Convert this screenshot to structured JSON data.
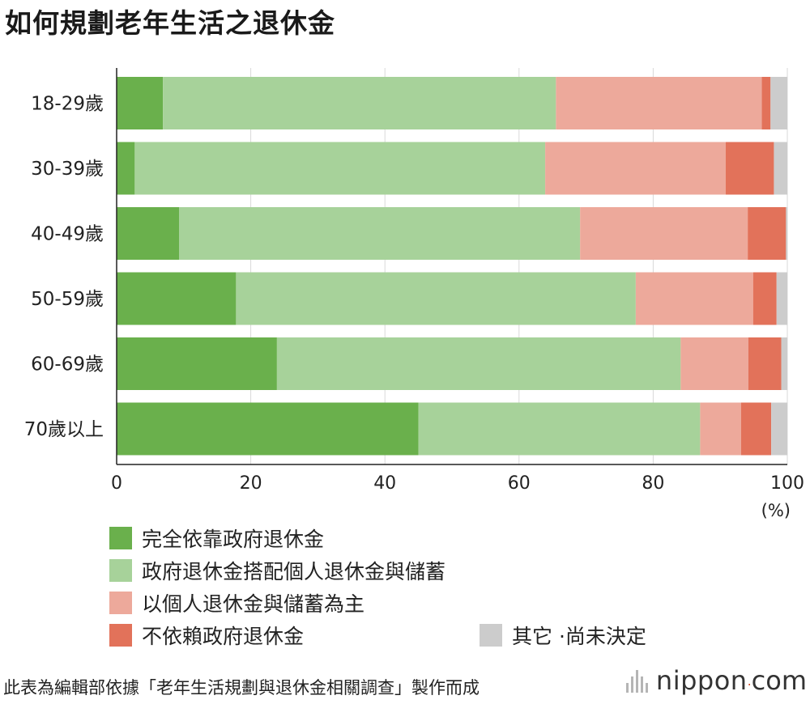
{
  "title": "如何規劃老年生活之退休金",
  "chart_data": {
    "type": "bar",
    "orientation": "horizontal",
    "stacked": true,
    "categories": [
      "18-29歲",
      "30-39歲",
      "40-49歲",
      "50-59歲",
      "60-69歲",
      "70歲以上"
    ],
    "series": [
      {
        "name": "完全依靠政府退休金",
        "color": "#6ab04c",
        "values": [
          6.9,
          2.7,
          9.3,
          17.8,
          23.9,
          45.0
        ]
      },
      {
        "name": "政府退休金搭配個人退休金與儲蓄",
        "color": "#a7d29a",
        "values": [
          58.6,
          61.2,
          59.8,
          59.6,
          60.2,
          42.0
        ]
      },
      {
        "name": "以個人退休金與儲蓄為主",
        "color": "#eda99b",
        "values": [
          30.7,
          26.9,
          25.0,
          17.5,
          10.1,
          6.1
        ]
      },
      {
        "name": "不依賴政府退休金",
        "color": "#e2725a",
        "values": [
          1.3,
          7.2,
          5.7,
          3.5,
          4.9,
          4.5
        ]
      },
      {
        "name": "其它 ·尚未決定",
        "color": "#cccccc",
        "values": [
          2.5,
          2.0,
          0.2,
          1.6,
          0.9,
          2.4
        ]
      }
    ],
    "xlim": [
      0,
      100
    ],
    "xticks": [
      "0",
      "20",
      "40",
      "60",
      "80",
      "100"
    ],
    "xunit": "(%)",
    "grid": true,
    "legend_position": "bottom"
  },
  "source_note": "此表為編輯部依據「老年生活規劃與退休金相關調查」製作而成",
  "brand": {
    "name": "nippon",
    "dot": ".",
    "suffix": "com"
  }
}
